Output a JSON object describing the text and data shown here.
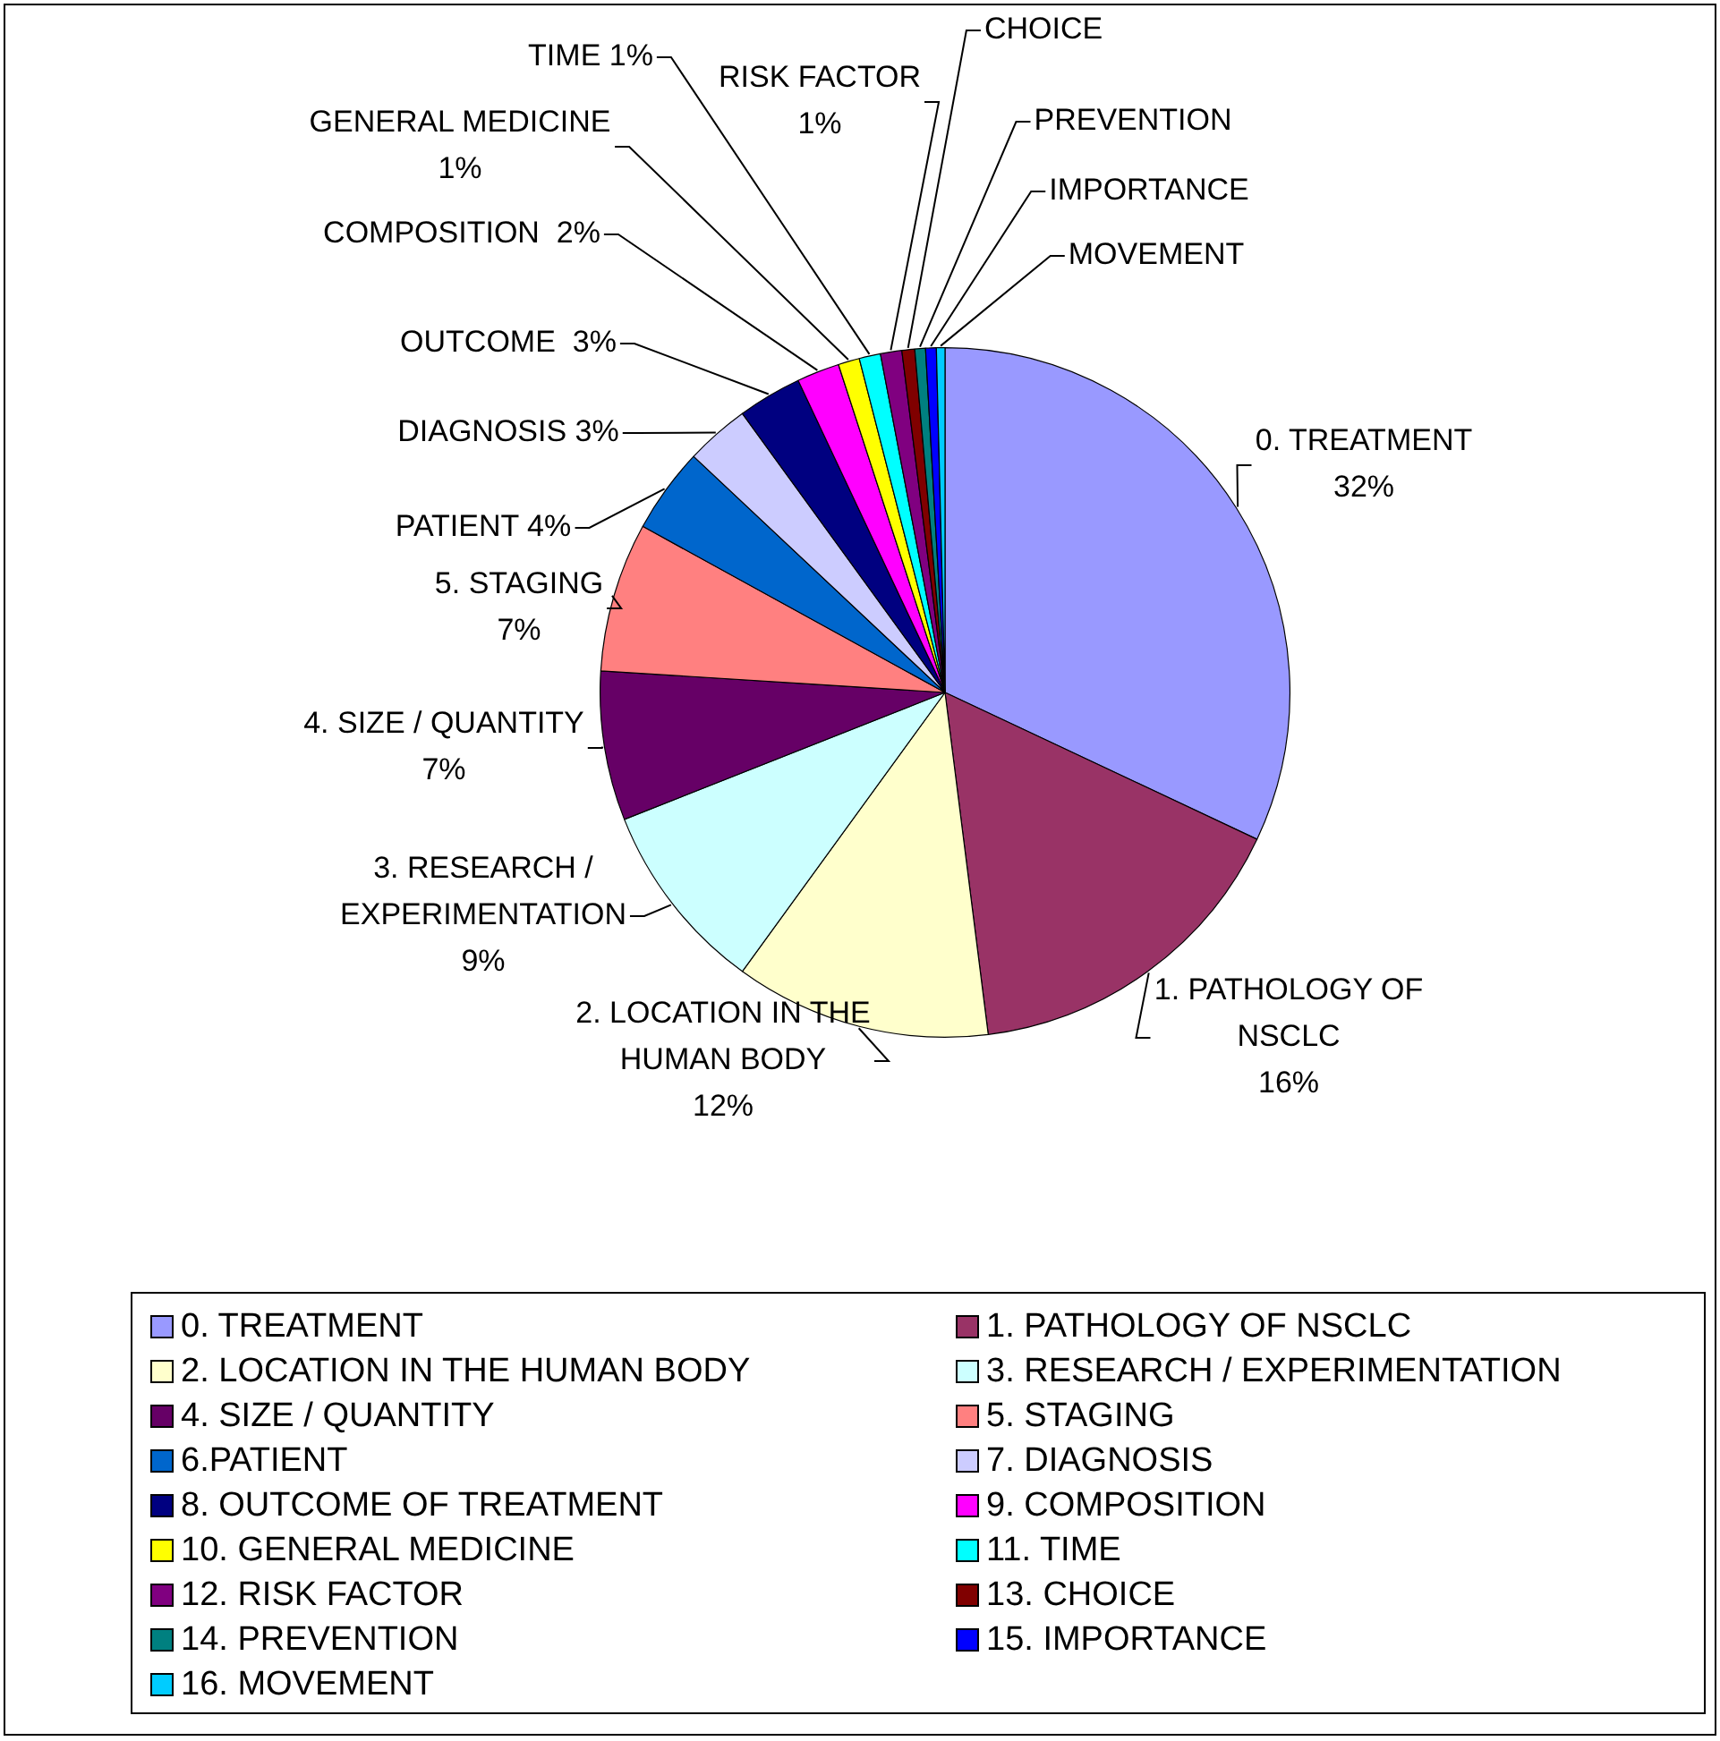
{
  "chart_data": {
    "type": "pie",
    "legend": "bottom",
    "categories": [
      "0. TREATMENT",
      "1. PATHOLOGY OF NSCLC",
      "2. LOCATION IN THE HUMAN BODY",
      "3. RESEARCH / EXPERIMENTATION",
      "4. SIZE / QUANTITY",
      "5. STAGING",
      "6.PATIENT",
      "7. DIAGNOSIS",
      "8. OUTCOME OF TREATMENT",
      "9. COMPOSITION",
      "10. GENERAL MEDICINE",
      "11. TIME",
      "12. RISK FACTOR",
      "13. CHOICE",
      "14. PREVENTION",
      "15. IMPORTANCE",
      "16. MOVEMENT"
    ],
    "values": [
      32,
      16,
      12,
      9,
      7,
      7,
      4,
      3,
      3,
      2,
      1,
      1,
      1,
      0.6,
      0.5,
      0.5,
      0.4
    ],
    "colors": [
      "#9999ff",
      "#993366",
      "#ffffcc",
      "#ccffff",
      "#660066",
      "#ff8080",
      "#0066cc",
      "#ccccff",
      "#000080",
      "#ff00ff",
      "#ffff00",
      "#00ffff",
      "#800080",
      "#800000",
      "#008080",
      "#0000ff",
      "#00ccff"
    ],
    "value_labels": [
      "0. TREATMENT\n32%",
      "1. PATHOLOGY OF\nNSCLC\n16%",
      "2. LOCATION IN THE\nHUMAN BODY\n12%",
      "3. RESEARCH /\nEXPERIMENTATION\n9%",
      "4. SIZE / QUANTITY\n7%",
      "5. STAGING\n7%",
      "PATIENT 4%",
      "DIAGNOSIS 3%",
      "OUTCOME  3%",
      "COMPOSITION  2%",
      "GENERAL MEDICINE\n1%",
      "TIME 1%",
      "RISK FACTOR\n1%",
      "CHOICE",
      "PREVENTION",
      "IMPORTANCE",
      "MOVEMENT"
    ]
  }
}
